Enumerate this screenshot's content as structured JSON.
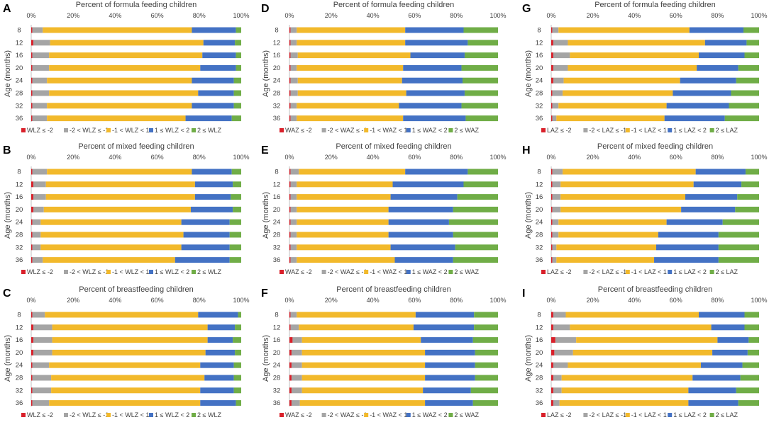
{
  "colors": {
    "seg1": "#d9202a",
    "seg2": "#a5a5a5",
    "seg3": "#f2b92b",
    "seg4": "#4472c4",
    "seg5": "#70ad47",
    "text": "#404040",
    "axis": "#bfbfbf"
  },
  "common": {
    "xticks": [
      "0%",
      "20%",
      "40%",
      "60%",
      "80%",
      "100%"
    ],
    "ylabel": "Age (months)",
    "categories": [
      "8",
      "12",
      "16",
      "20",
      "24",
      "28",
      "32",
      "36"
    ]
  },
  "chart_data": [
    {
      "letter": "A",
      "type": "bar",
      "stacked": true,
      "orientation": "horizontal",
      "title": "Percent of formula feeding children",
      "ylabel": "Age (months)",
      "xlim": [
        0,
        100
      ],
      "categories": [
        "8",
        "12",
        "16",
        "20",
        "24",
        "28",
        "32",
        "36"
      ],
      "legend": [
        "WLZ ≤ -2",
        "-2 < WLZ ≤ -1",
        "-1 < WLZ < 1",
        "1 ≤ WLZ < 2",
        "2 ≤ WLZ"
      ],
      "series": [
        {
          "name": "WLZ ≤ -2",
          "values": [
            0.5,
            1,
            0.5,
            0.5,
            0.5,
            0.5,
            0.5,
            0.5
          ]
        },
        {
          "name": "-2 < WLZ ≤ -1",
          "values": [
            5,
            8,
            8,
            8,
            7,
            8,
            7,
            7
          ]
        },
        {
          "name": "-1 < WLZ < 1",
          "values": [
            71,
            73,
            73,
            72,
            69,
            71,
            69,
            66
          ]
        },
        {
          "name": "1 ≤ WLZ < 2",
          "values": [
            21,
            15,
            16,
            17,
            20,
            17,
            20,
            22
          ]
        },
        {
          "name": "2 ≤ WLZ",
          "values": [
            2.5,
            3,
            2.5,
            2.5,
            3.5,
            3.5,
            3.5,
            4.5
          ]
        }
      ]
    },
    {
      "letter": "D",
      "type": "bar",
      "stacked": true,
      "orientation": "horizontal",
      "title": "Percent of formula feeding children",
      "ylabel": "Age (months)",
      "xlim": [
        0,
        100
      ],
      "categories": [
        "8",
        "12",
        "16",
        "20",
        "24",
        "28",
        "32",
        "36"
      ],
      "legend": [
        "WAZ ≤ -2",
        "-2 < WAZ ≤ -1",
        "-1 < WAZ < 1",
        "1 ≤ WAZ < 2",
        "2 ≤ WAZ"
      ],
      "series": [
        {
          "name": "WAZ ≤ -2",
          "values": [
            0.5,
            0.5,
            0.5,
            0.5,
            0.5,
            0.5,
            0.5,
            0.5
          ]
        },
        {
          "name": "-2 < WAZ ≤ -1",
          "values": [
            3,
            3,
            3.5,
            3,
            3.5,
            3.5,
            3,
            3
          ]
        },
        {
          "name": "-1 < WAZ < 1",
          "values": [
            52,
            52,
            54,
            51,
            50,
            52,
            49,
            51
          ]
        },
        {
          "name": "1 ≤ WAZ < 2",
          "values": [
            28,
            30,
            26,
            28,
            29,
            28,
            30,
            30
          ]
        },
        {
          "name": "2 ≤ WAZ",
          "values": [
            16.5,
            14.5,
            16,
            17.5,
            17,
            16,
            17.5,
            15.5
          ]
        }
      ]
    },
    {
      "letter": "G",
      "type": "bar",
      "stacked": true,
      "orientation": "horizontal",
      "title": "Percent of formula feeding children",
      "ylabel": "Age (months)",
      "xlim": [
        0,
        100
      ],
      "categories": [
        "8",
        "12",
        "16",
        "20",
        "24",
        "28",
        "32",
        "36"
      ],
      "legend": [
        "LAZ ≤ -2",
        "-2 < LAZ ≤ -1",
        "-1 < LAZ < 1",
        "1 ≤ LAZ < 2",
        "2 ≤ LAZ"
      ],
      "series": [
        {
          "name": "LAZ ≤ -2",
          "values": [
            0.5,
            1,
            1,
            1,
            1,
            0.5,
            0.5,
            0.5
          ]
        },
        {
          "name": "-2 < LAZ ≤ -1",
          "values": [
            3,
            7,
            8,
            7,
            5,
            5,
            3,
            2
          ]
        },
        {
          "name": "-1 < LAZ < 1",
          "values": [
            63,
            66,
            62,
            62,
            56,
            53,
            52,
            52
          ]
        },
        {
          "name": "1 ≤ LAZ < 2",
          "values": [
            26,
            20,
            22,
            20,
            27,
            28,
            30,
            29
          ]
        },
        {
          "name": "2 ≤ LAZ",
          "values": [
            7.5,
            6,
            7,
            10,
            11,
            13.5,
            14.5,
            16.5
          ]
        }
      ]
    },
    {
      "letter": "B",
      "type": "bar",
      "stacked": true,
      "orientation": "horizontal",
      "title": "Percent of mixed feeding children",
      "ylabel": "Age (months)",
      "xlim": [
        0,
        100
      ],
      "categories": [
        "8",
        "12",
        "16",
        "20",
        "24",
        "28",
        "32",
        "36"
      ],
      "legend": [
        "WLZ ≤ -2",
        "-2 < WLZ ≤ -1",
        "-1 < WLZ < 1",
        "1 ≤ WLZ < 2",
        "2 ≤ WLZ"
      ],
      "series": [
        {
          "name": "WLZ ≤ -2",
          "values": [
            0.5,
            1,
            1,
            1,
            0.5,
            0.5,
            0.5,
            0.5
          ]
        },
        {
          "name": "-2 < WLZ ≤ -1",
          "values": [
            7,
            6,
            6,
            5,
            4,
            4,
            4,
            5
          ]
        },
        {
          "name": "-1 < WLZ < 1",
          "values": [
            69,
            71,
            71,
            70,
            67,
            68,
            67,
            63
          ]
        },
        {
          "name": "1 ≤ WLZ < 2",
          "values": [
            19,
            18,
            17,
            20,
            23,
            22,
            23,
            26
          ]
        },
        {
          "name": "2 ≤ WLZ",
          "values": [
            4.5,
            4,
            5,
            4,
            5.5,
            5.5,
            5.5,
            5.5
          ]
        }
      ]
    },
    {
      "letter": "E",
      "type": "bar",
      "stacked": true,
      "orientation": "horizontal",
      "title": "Percent of mixed feeding children",
      "ylabel": "Age (months)",
      "xlim": [
        0,
        100
      ],
      "categories": [
        "8",
        "12",
        "16",
        "20",
        "24",
        "28",
        "32",
        "36"
      ],
      "legend": [
        "WAZ ≤ -2",
        "-2 < WAZ ≤ -1",
        "-1 < WAZ < 1",
        "1 ≤ WAZ < 2",
        "2 ≤ WAZ"
      ],
      "series": [
        {
          "name": "WAZ ≤ -2",
          "values": [
            0.5,
            0.5,
            0.5,
            0.5,
            0.5,
            0.5,
            0.5,
            0.5
          ]
        },
        {
          "name": "-2 < WAZ ≤ -1",
          "values": [
            4,
            3,
            3,
            3,
            3,
            3,
            3,
            3
          ]
        },
        {
          "name": "-1 < WAZ < 1",
          "values": [
            51,
            46,
            45,
            44,
            44,
            44,
            45,
            47
          ]
        },
        {
          "name": "1 ≤ WAZ < 2",
          "values": [
            30,
            34,
            32,
            31,
            29,
            31,
            31,
            28
          ]
        },
        {
          "name": "2 ≤ WAZ",
          "values": [
            14.5,
            16.5,
            19.5,
            21.5,
            23.5,
            21.5,
            20.5,
            21.5
          ]
        }
      ]
    },
    {
      "letter": "H",
      "type": "bar",
      "stacked": true,
      "orientation": "horizontal",
      "title": "Percent of mixed feeding children",
      "ylabel": "Age (months)",
      "xlim": [
        0,
        100
      ],
      "categories": [
        "8",
        "12",
        "16",
        "20",
        "24",
        "28",
        "32",
        "36"
      ],
      "legend": [
        "LAZ ≤ -2",
        "-2 < LAZ ≤ -1",
        "-1 < LAZ < 1",
        "1 ≤ LAZ < 2",
        "2 ≤ LAZ"
      ],
      "series": [
        {
          "name": "LAZ ≤ -2",
          "values": [
            0.5,
            0.5,
            0.5,
            0.5,
            0.5,
            0.5,
            0.5,
            0.5
          ]
        },
        {
          "name": "-2 < LAZ ≤ -1",
          "values": [
            5,
            4,
            4,
            4,
            3,
            3,
            2,
            2
          ]
        },
        {
          "name": "-1 < LAZ < 1",
          "values": [
            64,
            64,
            60,
            58,
            52,
            48,
            48,
            47
          ]
        },
        {
          "name": "1 ≤ LAZ < 2",
          "values": [
            24,
            23,
            25,
            26,
            27,
            29,
            30,
            31
          ]
        },
        {
          "name": "2 ≤ LAZ",
          "values": [
            6.5,
            8.5,
            10.5,
            11.5,
            17.5,
            19.5,
            19.5,
            19.5
          ]
        }
      ]
    },
    {
      "letter": "C",
      "type": "bar",
      "stacked": true,
      "orientation": "horizontal",
      "title": "Percent of breastfeeding children",
      "ylabel": "Age (months)",
      "xlim": [
        0,
        100
      ],
      "categories": [
        "8",
        "12",
        "16",
        "20",
        "24",
        "28",
        "32",
        "36"
      ],
      "legend": [
        "WLZ ≤ -2",
        "-2 < WLZ ≤ -1",
        "-1 < WLZ < 1",
        "1 ≤ WLZ < 2",
        "2 ≤ WLZ"
      ],
      "series": [
        {
          "name": "WLZ ≤ -2",
          "values": [
            0.5,
            1,
            1,
            1,
            0.5,
            0.5,
            0.5,
            0.5
          ]
        },
        {
          "name": "-2 < WLZ ≤ -1",
          "values": [
            6,
            9,
            9,
            9,
            8,
            9,
            9,
            8
          ]
        },
        {
          "name": "-1 < WLZ < 1",
          "values": [
            73,
            74,
            74,
            73,
            72,
            73,
            71,
            72
          ]
        },
        {
          "name": "1 ≤ WLZ < 2",
          "values": [
            19,
            13,
            12,
            14,
            16,
            14,
            16,
            17
          ]
        },
        {
          "name": "2 ≤ WLZ",
          "values": [
            1.5,
            3,
            4,
            3,
            3.5,
            3.5,
            3.5,
            2.5
          ]
        }
      ]
    },
    {
      "letter": "F",
      "type": "bar",
      "stacked": true,
      "orientation": "horizontal",
      "title": "Percent of breastfeeding children",
      "ylabel": "Age (months)",
      "xlim": [
        0,
        100
      ],
      "categories": [
        "8",
        "12",
        "16",
        "20",
        "24",
        "28",
        "32",
        "36"
      ],
      "legend": [
        "WAZ ≤ -2",
        "-2 < WAZ ≤ -1",
        "-1 < WAZ < 1",
        "1 ≤ WAZ < 2",
        "2 ≤ WAZ"
      ],
      "series": [
        {
          "name": "WAZ ≤ -2",
          "values": [
            0.5,
            0.5,
            1.5,
            1,
            1,
            1,
            1,
            1
          ]
        },
        {
          "name": "-2 < WAZ ≤ -1",
          "values": [
            3,
            4,
            4.5,
            5,
            5,
            5,
            5,
            4
          ]
        },
        {
          "name": "-1 < WAZ < 1",
          "values": [
            57,
            55,
            57,
            59,
            59,
            59,
            58,
            60
          ]
        },
        {
          "name": "1 ≤ WAZ < 2",
          "values": [
            28,
            29,
            25,
            24,
            24,
            24,
            23,
            23
          ]
        },
        {
          "name": "2 ≤ WAZ",
          "values": [
            11.5,
            11.5,
            12,
            11,
            11,
            11,
            13,
            12
          ]
        }
      ]
    },
    {
      "letter": "I",
      "type": "bar",
      "stacked": true,
      "orientation": "horizontal",
      "title": "Percent of breastfeeding children",
      "ylabel": "Age (months)",
      "xlim": [
        0,
        100
      ],
      "categories": [
        "8",
        "12",
        "16",
        "20",
        "24",
        "28",
        "32",
        "36"
      ],
      "legend": [
        "LAZ ≤ -2",
        "-2 < LAZ ≤ -1",
        "-1 < LAZ < 1",
        "1 ≤ LAZ < 2",
        "2 ≤ LAZ"
      ],
      "series": [
        {
          "name": "LAZ ≤ -2",
          "values": [
            1,
            1,
            2,
            1.5,
            1,
            1,
            1,
            1
          ]
        },
        {
          "name": "-2 < LAZ ≤ -1",
          "values": [
            6,
            8,
            10,
            9,
            7,
            4,
            4,
            3
          ]
        },
        {
          "name": "-1 < LAZ < 1",
          "values": [
            64,
            68,
            68,
            67,
            64,
            63,
            61,
            62
          ]
        },
        {
          "name": "1 ≤ LAZ < 2",
          "values": [
            22,
            16,
            15,
            17,
            20,
            23,
            23,
            24
          ]
        },
        {
          "name": "2 ≤ LAZ",
          "values": [
            7,
            7,
            5,
            5.5,
            8,
            9,
            11,
            10
          ]
        }
      ]
    }
  ]
}
